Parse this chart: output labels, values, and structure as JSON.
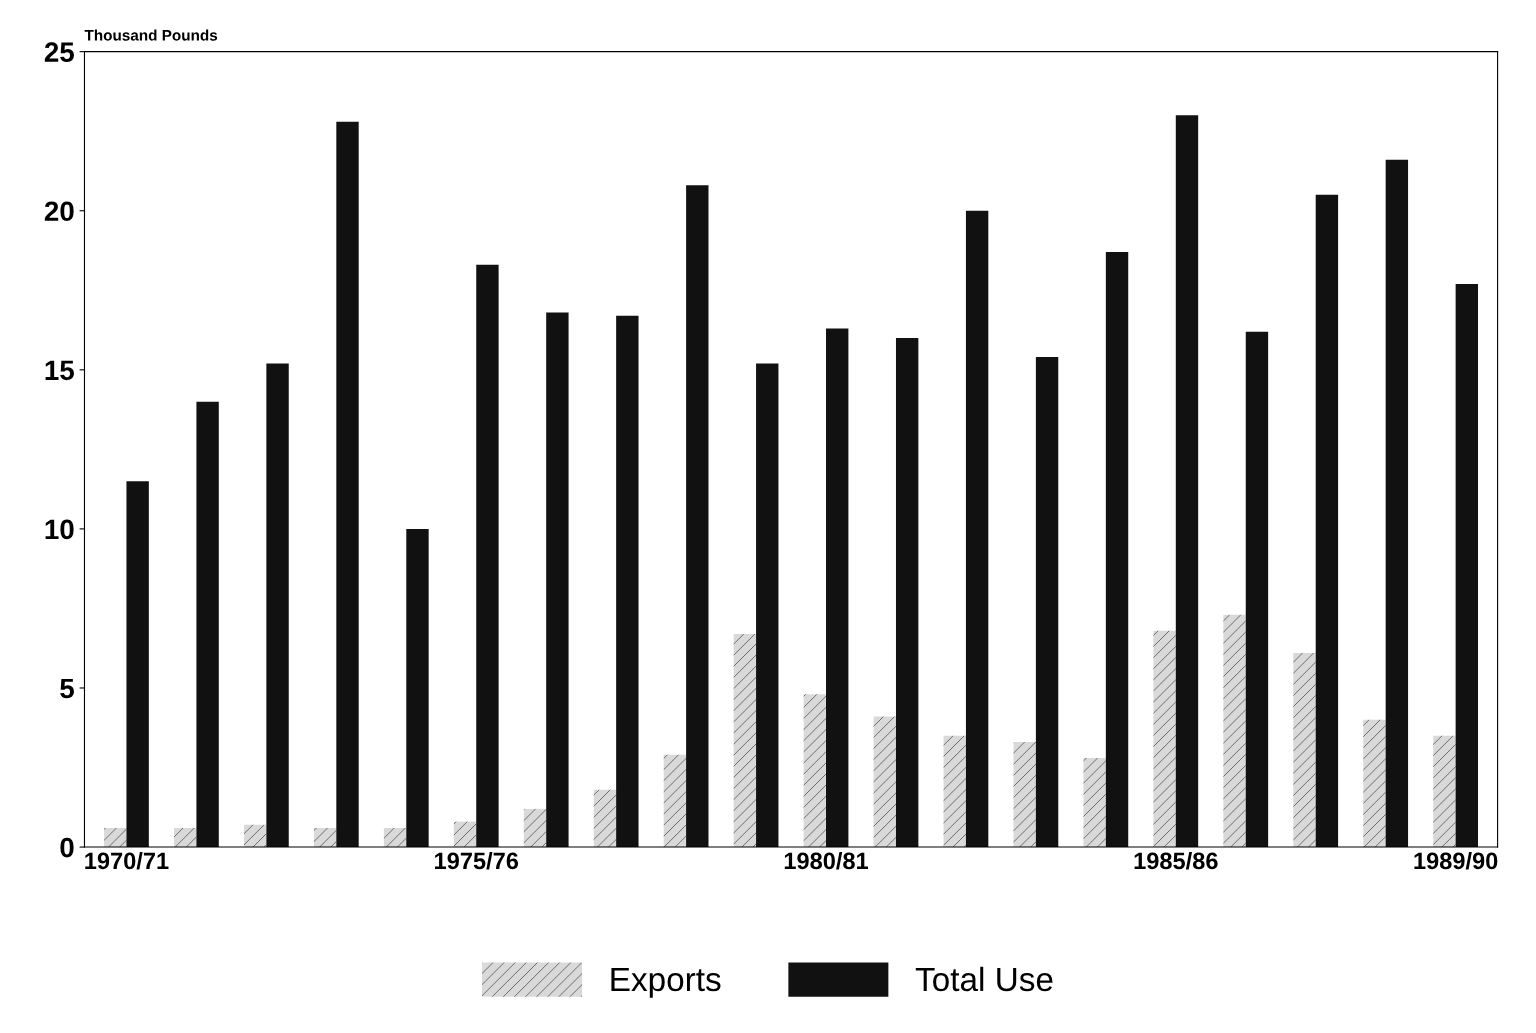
{
  "chart_data": {
    "type": "bar",
    "ylabel": "Thousand Pounds",
    "categories": [
      "1970/71",
      null,
      null,
      null,
      null,
      "1975/76",
      null,
      null,
      null,
      null,
      "1980/81",
      null,
      null,
      null,
      null,
      "1985/86",
      null,
      null,
      null,
      "1989/90"
    ],
    "series": [
      {
        "name": "Exports",
        "color": "#d9d9d9",
        "values": [
          0.6,
          0.6,
          0.7,
          0.6,
          0.6,
          0.8,
          1.2,
          1.8,
          2.9,
          6.7,
          4.8,
          4.1,
          3.5,
          3.3,
          2.8,
          6.8,
          7.3,
          6.1,
          4.0,
          3.5
        ]
      },
      {
        "name": "Total Use",
        "color": "#111111",
        "values": [
          11.5,
          14.0,
          15.2,
          22.8,
          10.0,
          18.3,
          16.8,
          16.7,
          20.8,
          15.2,
          16.3,
          16.0,
          20.0,
          15.4,
          18.7,
          23.0,
          16.2,
          20.5,
          21.6,
          17.7
        ]
      }
    ],
    "ylim": [
      0,
      25
    ],
    "yticks": [
      0,
      5,
      10,
      15,
      20,
      25
    ],
    "grid": false,
    "legend": "bottom"
  }
}
